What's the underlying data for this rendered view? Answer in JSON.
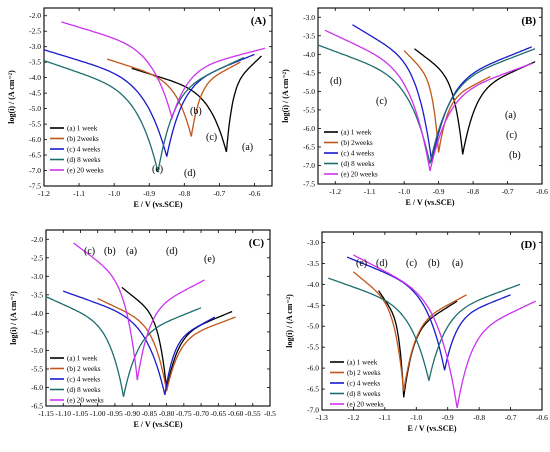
{
  "chart_data": [
    {
      "type": "line",
      "panel_label": "(A)",
      "xlabel": "E / V (vs.SCE)",
      "ylabel": "log(i) / (A cm⁻²)",
      "xlim": [
        -1.2,
        -0.55
      ],
      "ylim": [
        -7.5,
        -1.75
      ],
      "xticks": [
        "-1.2",
        "-1.1",
        "-1.0",
        "-0.9",
        "-0.8",
        "-0.7",
        "-0.6"
      ],
      "yticks": [
        "-2.0",
        "-2.5",
        "-3.0",
        "-3.5",
        "-4.0",
        "-4.5",
        "-5.0",
        "-5.5",
        "-6.0",
        "-6.5",
        "-7.0",
        "-7.5"
      ],
      "grid": false,
      "legend_position": "bottom-left",
      "annotations": [
        "(a)",
        "(b)",
        "(c)",
        "(d)",
        "(e)"
      ],
      "series": [
        {
          "name": "(a) 1 week",
          "color": "#000000",
          "ecorr": -0.68,
          "logi_min": -6.4,
          "ca_start": [
            -0.95,
            -3.7
          ],
          "an_end": [
            -0.58,
            -3.3
          ]
        },
        {
          "name": "(b) 2weeks",
          "color": "#c0561a",
          "ecorr": -0.78,
          "logi_min": -5.9,
          "ca_start": [
            -1.02,
            -3.4
          ],
          "an_end": [
            -0.64,
            -3.5
          ]
        },
        {
          "name": "(c) 4 weeks",
          "color": "#1a1acc",
          "ecorr": -0.85,
          "logi_min": -6.55,
          "ca_start": [
            -1.2,
            -3.1
          ],
          "an_end": [
            -0.6,
            -3.25
          ]
        },
        {
          "name": "(d) 8 weeks",
          "color": "#1f6e6e",
          "ecorr": -0.875,
          "logi_min": -7.05,
          "ca_start": [
            -1.2,
            -3.45
          ],
          "an_end": [
            -0.63,
            -3.35
          ]
        },
        {
          "name": "(e) 20 weeks",
          "color": "#cc33ee",
          "ecorr": -0.835,
          "logi_min": -5.3,
          "ca_start": [
            -1.15,
            -2.2
          ],
          "an_end": [
            -0.57,
            -3.05
          ]
        }
      ]
    },
    {
      "type": "line",
      "panel_label": "(B)",
      "xlabel": "E / V (vs.SCE)",
      "ylabel": "log(i) / (A cm⁻²)",
      "xlim": [
        -1.25,
        -0.6
      ],
      "ylim": [
        -7.5,
        -2.75
      ],
      "xticks": [
        "-1.2",
        "-1.1",
        "-1.0",
        "-0.9",
        "-0.8",
        "-0.7",
        "-0.6"
      ],
      "yticks": [
        "-3.0",
        "-3.5",
        "-4.0",
        "-4.5",
        "-5.0",
        "-5.5",
        "-6.0",
        "-6.5",
        "-7.0",
        "-7.5"
      ],
      "grid": false,
      "legend_position": "bottom-left",
      "annotations": [
        "(a)",
        "(b)",
        "(c)",
        "(d)",
        "(c)"
      ],
      "series": [
        {
          "name": "(a) 1 week",
          "color": "#000000",
          "ecorr": -0.83,
          "logi_min": -6.7,
          "ca_start": [
            -0.97,
            -3.85
          ],
          "an_end": [
            -0.62,
            -4.2
          ]
        },
        {
          "name": "(b) 2weeks",
          "color": "#c0561a",
          "ecorr": -0.9,
          "logi_min": -6.65,
          "ca_start": [
            -1.0,
            -3.9
          ],
          "an_end": [
            -0.75,
            -4.6
          ]
        },
        {
          "name": "(c) 4 weeks",
          "color": "#1a1acc",
          "ecorr": -0.92,
          "logi_min": -6.9,
          "ca_start": [
            -1.15,
            -3.2
          ],
          "an_end": [
            -0.63,
            -3.8
          ]
        },
        {
          "name": "(d) 8 weeks",
          "color": "#1f6e6e",
          "ecorr": -0.925,
          "logi_min": -6.95,
          "ca_start": [
            -1.25,
            -3.75
          ],
          "an_end": [
            -0.62,
            -3.85
          ]
        },
        {
          "name": "(e) 20 weeks",
          "color": "#cc33ee",
          "ecorr": -0.925,
          "logi_min": -7.15,
          "ca_start": [
            -1.23,
            -3.35
          ],
          "an_end": [
            -0.63,
            -4.25
          ]
        }
      ]
    },
    {
      "type": "line",
      "panel_label": "(C)",
      "xlabel": "E / V (vs.SCE)",
      "ylabel": "log(i) / (A cm⁻²)",
      "xlim": [
        -1.15,
        -0.5
      ],
      "ylim": [
        -6.5,
        -1.75
      ],
      "xticks": [
        "-1.15",
        "-1.10",
        "-1.05",
        "-1.00",
        "-0.95",
        "-0.90",
        "-0.85",
        "-0.80",
        "-0.75",
        "-0.70",
        "-0.65",
        "-0.60",
        "-0.55",
        "-0.5"
      ],
      "yticks": [
        "-2.0",
        "-2.5",
        "-3.0",
        "-3.5",
        "-4.0",
        "-4.5",
        "-5.0",
        "-5.5",
        "-6.0",
        "-6.5"
      ],
      "grid": false,
      "legend_position": "bottom-left",
      "annotations": [
        "(c)",
        "(b)",
        "(a)",
        "(d)",
        "(e)"
      ],
      "series": [
        {
          "name": "(a) 1 week",
          "color": "#000000",
          "ecorr": -0.8,
          "logi_min": -6.05,
          "ca_start": [
            -0.93,
            -3.3
          ],
          "an_end": [
            -0.61,
            -3.95
          ]
        },
        {
          "name": "(b) 2 weeks",
          "color": "#c0561a",
          "ecorr": -0.8,
          "logi_min": -6.1,
          "ca_start": [
            -1.0,
            -3.6
          ],
          "an_end": [
            -0.6,
            -4.1
          ]
        },
        {
          "name": "(c) 4 weeks",
          "color": "#1a1acc",
          "ecorr": -0.805,
          "logi_min": -6.2,
          "ca_start": [
            -1.1,
            -3.4
          ],
          "an_end": [
            -0.66,
            -4.1
          ]
        },
        {
          "name": "(d) 8 weeks",
          "color": "#1f6e6e",
          "ecorr": -0.925,
          "logi_min": -6.25,
          "ca_start": [
            -1.15,
            -3.55
          ],
          "an_end": [
            -0.7,
            -3.85
          ]
        },
        {
          "name": "(e) 20 weeks",
          "color": "#cc33ee",
          "ecorr": -0.885,
          "logi_min": -5.8,
          "ca_start": [
            -1.07,
            -2.1
          ],
          "an_end": [
            -0.69,
            -3.1
          ]
        }
      ]
    },
    {
      "type": "line",
      "panel_label": "(D)",
      "xlabel": "E / V (vs.SCE)",
      "ylabel": "log(i) / (A cm⁻²)",
      "xlim": [
        -1.3,
        -0.6
      ],
      "ylim": [
        -7.0,
        -2.75
      ],
      "xticks": [
        "-1.3",
        "-1.2",
        "-1.1",
        "-1.0",
        "-0.9",
        "-0.8",
        "-0.7",
        "-0.6"
      ],
      "yticks": [
        "-3.0",
        "-3.5",
        "-4.0",
        "-4.5",
        "-5.0",
        "-5.5",
        "-6.0",
        "-6.5",
        "-7.0"
      ],
      "grid": false,
      "legend_position": "bottom-left",
      "annotations": [
        "(e)",
        "(d)",
        "(c)",
        "(b)",
        "(a)"
      ],
      "series": [
        {
          "name": "(a) 1 week",
          "color": "#000000",
          "ecorr": -1.04,
          "logi_min": -6.7,
          "ca_start": [
            -1.12,
            -4.15
          ],
          "an_end": [
            -0.87,
            -4.4
          ]
        },
        {
          "name": "(b) 2 weeks",
          "color": "#c0561a",
          "ecorr": -1.04,
          "logi_min": -6.55,
          "ca_start": [
            -1.2,
            -3.7
          ],
          "an_end": [
            -0.84,
            -4.25
          ]
        },
        {
          "name": "(c) 4 weeks",
          "color": "#1a1acc",
          "ecorr": -0.91,
          "logi_min": -6.05,
          "ca_start": [
            -1.22,
            -3.35
          ],
          "an_end": [
            -0.7,
            -4.25
          ]
        },
        {
          "name": "(d) 8 weeks",
          "color": "#1f6e6e",
          "ecorr": -0.96,
          "logi_min": -6.3,
          "ca_start": [
            -1.28,
            -3.85
          ],
          "an_end": [
            -0.67,
            -4.0
          ]
        },
        {
          "name": "(e) 20 weeks",
          "color": "#cc33ee",
          "ecorr": -0.87,
          "logi_min": -6.95,
          "ca_start": [
            -1.2,
            -3.3
          ],
          "an_end": [
            -0.62,
            -4.4
          ]
        }
      ]
    }
  ]
}
